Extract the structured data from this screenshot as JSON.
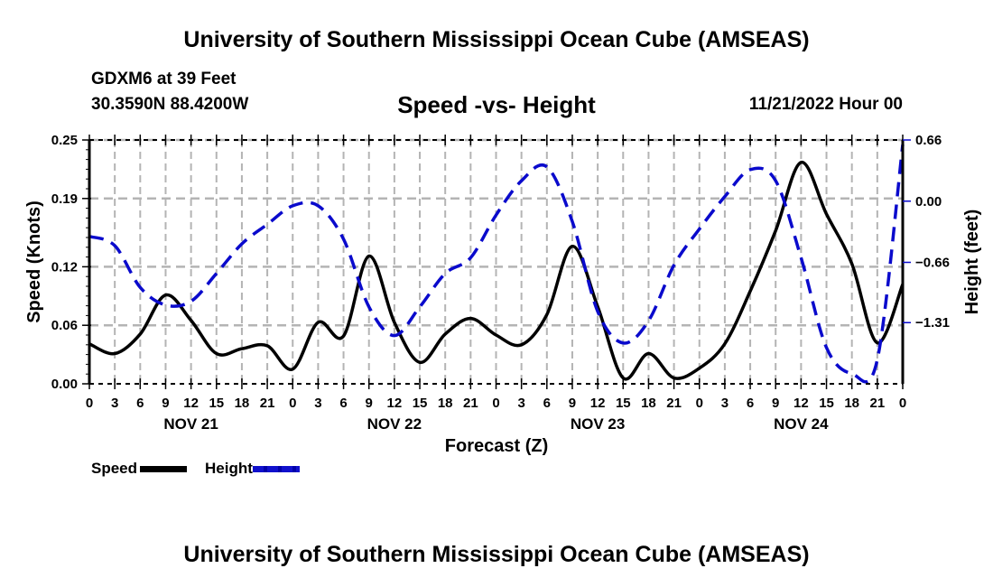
{
  "header": {
    "main_title": "University of Southern Mississippi Ocean Cube (AMSEAS)",
    "station": "GDXM6 at 39 Feet",
    "coords": "30.3590N  88.4200W",
    "chart_title": "Speed -vs- Height",
    "run_time": "11/21/2022 Hour 00"
  },
  "footer": {
    "title": "University of Southern Mississippi Ocean Cube (AMSEAS)"
  },
  "legend": {
    "speed": "Speed",
    "height": "Height"
  },
  "colors": {
    "speed": "#000000",
    "height": "#0a0acc",
    "grid": "#b4b4b4"
  },
  "chart_data": {
    "type": "line",
    "title": "Speed -vs- Height",
    "xlabel": "Forecast (Z)",
    "ylabel": "Speed (Knots)",
    "y2label": "Height (feet)",
    "x_hours": [
      0,
      3,
      6,
      9,
      12,
      15,
      18,
      21,
      24,
      27,
      30,
      33,
      36,
      39,
      42,
      45,
      48,
      51,
      54,
      57,
      60,
      63,
      66,
      69,
      72,
      75,
      78,
      81,
      84,
      87,
      90,
      93,
      96
    ],
    "x_tick_labels": [
      "0",
      "3",
      "6",
      "9",
      "12",
      "15",
      "18",
      "21",
      "0",
      "3",
      "6",
      "9",
      "12",
      "15",
      "18",
      "21",
      "0",
      "3",
      "6",
      "9",
      "12",
      "15",
      "18",
      "21",
      "0",
      "3",
      "6",
      "9",
      "12",
      "15",
      "18",
      "21",
      "0"
    ],
    "day_labels": [
      {
        "label": "NOV 21",
        "hour": 12
      },
      {
        "label": "NOV 22",
        "hour": 36
      },
      {
        "label": "NOV 23",
        "hour": 60
      },
      {
        "label": "NOV 24",
        "hour": 84
      }
    ],
    "xlim": [
      0,
      96
    ],
    "ylim": [
      0,
      0.25
    ],
    "y_ticks": [
      0.0,
      0.06,
      0.12,
      0.19,
      0.25
    ],
    "y_tick_labels": [
      "0.00",
      "0.06",
      "0.12",
      "0.19",
      "0.25"
    ],
    "y2lim": [
      -1.97,
      0.66
    ],
    "y2_ticks": [
      0.66,
      0.0,
      -0.66,
      -1.31
    ],
    "y2_tick_labels": [
      "0.66",
      "0.00",
      "−0.66",
      "−1.31"
    ],
    "grid": true,
    "legend_position": "bottom-left",
    "series": [
      {
        "name": "Speed",
        "axis": "left",
        "style": "solid",
        "values": [
          0.041,
          0.031,
          0.051,
          0.091,
          0.065,
          0.031,
          0.036,
          0.039,
          0.015,
          0.063,
          0.049,
          0.131,
          0.063,
          0.022,
          0.051,
          0.067,
          0.05,
          0.04,
          0.071,
          0.141,
          0.079,
          0.006,
          0.031,
          0.006,
          0.016,
          0.041,
          0.095,
          0.157,
          0.227,
          0.174,
          0.123,
          0.042,
          0.102
        ]
      },
      {
        "name": "Height",
        "axis": "right",
        "style": "dashed",
        "values": [
          -0.38,
          -0.48,
          -0.93,
          -1.12,
          -1.08,
          -0.78,
          -0.46,
          -0.25,
          -0.05,
          -0.05,
          -0.41,
          -1.14,
          -1.45,
          -1.14,
          -0.78,
          -0.61,
          -0.15,
          0.22,
          0.37,
          -0.22,
          -1.19,
          -1.53,
          -1.29,
          -0.69,
          -0.3,
          0.05,
          0.34,
          0.22,
          -0.61,
          -1.58,
          -1.86,
          -1.71,
          0.61
        ]
      }
    ]
  }
}
